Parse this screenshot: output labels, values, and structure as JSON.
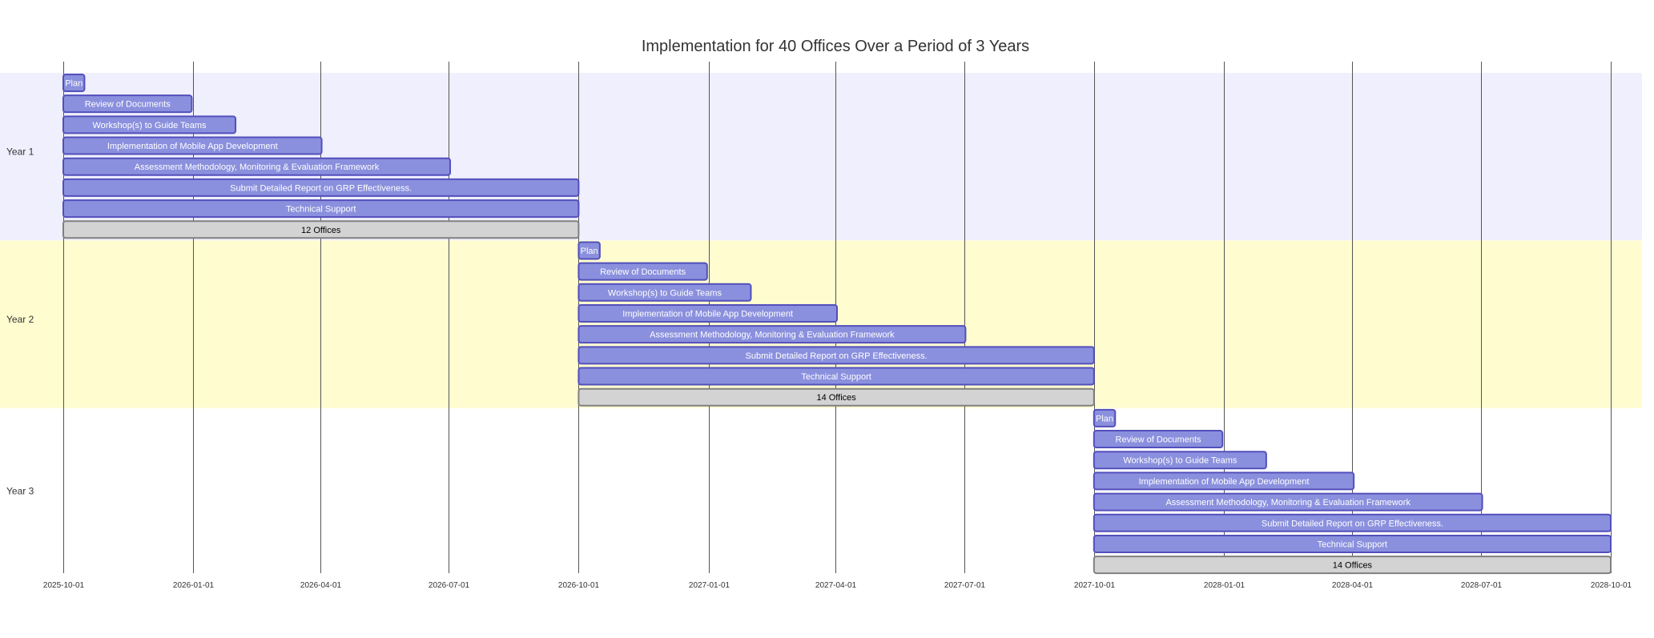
{
  "chart_data": {
    "type": "gantt",
    "title": "Implementation for 40 Offices Over a Period of 3 Years",
    "date_range": [
      "2025-10-01",
      "2028-10-01"
    ],
    "x_ticks": [
      "2025-10-01",
      "2026-01-01",
      "2026-04-01",
      "2026-07-01",
      "2026-10-01",
      "2027-01-01",
      "2027-04-01",
      "2027-07-01",
      "2027-10-01",
      "2028-01-01",
      "2028-04-01",
      "2028-07-01",
      "2028-10-01"
    ],
    "sections": [
      {
        "name": "Year 1",
        "band_color": "#efeffd",
        "tasks": [
          {
            "label": "Plan",
            "start": "2025-10-01",
            "end": "2025-10-16",
            "kind": "task"
          },
          {
            "label": "Review of Documents",
            "start": "2025-10-01",
            "end": "2025-12-31",
            "kind": "task"
          },
          {
            "label": "Workshop(s) to Guide Teams",
            "start": "2025-10-01",
            "end": "2026-01-31",
            "kind": "task"
          },
          {
            "label": "Implementation of Mobile App Development",
            "start": "2025-10-01",
            "end": "2026-04-02",
            "kind": "task"
          },
          {
            "label": "Assessment Methodology, Monitoring & Evaluation Framework",
            "start": "2025-10-01",
            "end": "2026-07-02",
            "kind": "task"
          },
          {
            "label": "Submit Detailed Report on GRP Effectiveness.",
            "start": "2025-10-01",
            "end": "2026-10-01",
            "kind": "task"
          },
          {
            "label": "Technical Support",
            "start": "2025-10-01",
            "end": "2026-10-01",
            "kind": "task"
          },
          {
            "label": "12 Offices",
            "start": "2025-10-01",
            "end": "2026-10-01",
            "kind": "milestone-span"
          }
        ]
      },
      {
        "name": "Year 2",
        "band_color": "#fffdd0",
        "tasks": [
          {
            "label": "Plan",
            "start": "2026-10-01",
            "end": "2026-10-16",
            "kind": "task"
          },
          {
            "label": "Review of Documents",
            "start": "2026-10-01",
            "end": "2026-12-31",
            "kind": "task"
          },
          {
            "label": "Workshop(s) to Guide Teams",
            "start": "2026-10-01",
            "end": "2027-01-31",
            "kind": "task"
          },
          {
            "label": "Implementation of Mobile App Development",
            "start": "2026-10-01",
            "end": "2027-04-02",
            "kind": "task"
          },
          {
            "label": "Assessment Methodology, Monitoring & Evaluation Framework",
            "start": "2026-10-01",
            "end": "2027-07-02",
            "kind": "task"
          },
          {
            "label": "Submit Detailed Report on GRP Effectiveness.",
            "start": "2026-10-01",
            "end": "2027-10-01",
            "kind": "task"
          },
          {
            "label": "Technical Support",
            "start": "2026-10-01",
            "end": "2027-10-01",
            "kind": "task"
          },
          {
            "label": "14 Offices",
            "start": "2026-10-01",
            "end": "2027-10-01",
            "kind": "milestone-span"
          }
        ]
      },
      {
        "name": "Year 3",
        "band_color": "#ffffff",
        "tasks": [
          {
            "label": "Plan",
            "start": "2027-10-01",
            "end": "2027-10-16",
            "kind": "task"
          },
          {
            "label": "Review of Documents",
            "start": "2027-10-01",
            "end": "2027-12-31",
            "kind": "task"
          },
          {
            "label": "Workshop(s) to Guide Teams",
            "start": "2027-10-01",
            "end": "2028-01-31",
            "kind": "task"
          },
          {
            "label": "Implementation of Mobile App Development",
            "start": "2027-10-01",
            "end": "2028-04-02",
            "kind": "task"
          },
          {
            "label": "Assessment Methodology, Monitoring & Evaluation Framework",
            "start": "2027-10-01",
            "end": "2028-07-02",
            "kind": "task"
          },
          {
            "label": "Submit Detailed Report on GRP Effectiveness.",
            "start": "2027-10-01",
            "end": "2028-10-01",
            "kind": "task"
          },
          {
            "label": "Technical Support",
            "start": "2027-10-01",
            "end": "2028-10-01",
            "kind": "task"
          },
          {
            "label": "14 Offices",
            "start": "2027-10-01",
            "end": "2028-10-01",
            "kind": "milestone-span"
          }
        ]
      }
    ],
    "colors": {
      "task_fill": "#8a90dd",
      "task_stroke": "#534fbc",
      "task_text": "#ffffff",
      "span_fill": "#d3d3d3",
      "span_stroke": "#808080",
      "span_text": "#000000",
      "grid": "#555555"
    },
    "grid": true
  }
}
